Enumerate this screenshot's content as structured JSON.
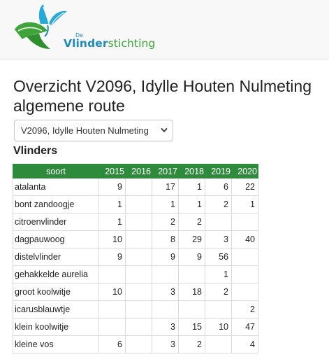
{
  "brand": {
    "de": "De",
    "v": "V",
    "linder": "linder",
    "stichting": "stichting"
  },
  "page": {
    "title": "Overzicht V2096, Idylle Houten Nulmeting algemene route",
    "select_value": "V2096, Idylle Houten Nulmeting",
    "section": "Vlinders"
  },
  "colors": {
    "header_green": "#2e8b3c",
    "brand_blue": "#1e8bb8",
    "brand_green": "#3fa43a"
  },
  "table": {
    "columns": [
      "soort",
      "2015",
      "2016",
      "2017",
      "2018",
      "2019",
      "2020"
    ],
    "rows": [
      [
        "atalanta",
        "9",
        "",
        "17",
        "1",
        "6",
        "22"
      ],
      [
        "bont zandoogje",
        "1",
        "",
        "1",
        "1",
        "2",
        "1"
      ],
      [
        "citroenvlinder",
        "1",
        "",
        "2",
        "2",
        "",
        ""
      ],
      [
        "dagpauwoog",
        "10",
        "",
        "8",
        "29",
        "3",
        "40"
      ],
      [
        "distelvlinder",
        "9",
        "",
        "9",
        "9",
        "56",
        ""
      ],
      [
        "gehakkelde aurelia",
        "",
        "",
        "",
        "",
        "1",
        ""
      ],
      [
        "groot koolwitje",
        "10",
        "",
        "3",
        "18",
        "2",
        ""
      ],
      [
        "icarusblauwtje",
        "",
        "",
        "",
        "",
        "",
        "2"
      ],
      [
        "klein koolwitje",
        "",
        "",
        "3",
        "15",
        "10",
        "47"
      ],
      [
        "kleine vos",
        "6",
        "",
        "3",
        "2",
        "",
        "4"
      ]
    ]
  }
}
